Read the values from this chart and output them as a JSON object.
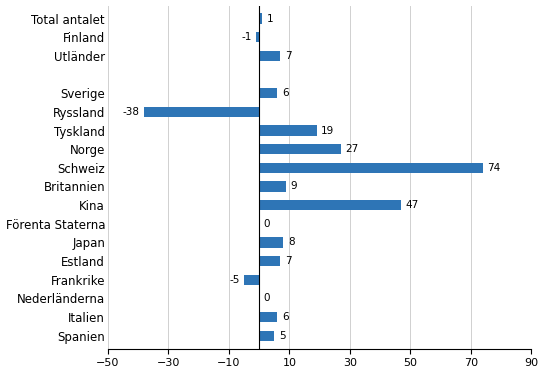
{
  "categories": [
    "Spanien",
    "Italien",
    "Nederländerna",
    "Frankrike",
    "Estland",
    "Japan",
    "Förenta Staterna",
    "Kina",
    "Britannien",
    "Schweiz",
    "Norge",
    "Tyskland",
    "Ryssland",
    "Sverige",
    "",
    "Utländer",
    "Finland",
    "Total antalet"
  ],
  "values": [
    5,
    6,
    0,
    -5,
    7,
    8,
    0,
    47,
    9,
    74,
    27,
    19,
    -38,
    6,
    null,
    7,
    -1,
    1
  ],
  "bar_color": "#2e75b6",
  "xlim": [
    -50,
    90
  ],
  "xticks": [
    -50,
    -30,
    -10,
    10,
    30,
    50,
    70,
    90
  ],
  "value_label_fontsize": 7.5,
  "category_fontsize": 8.5,
  "tick_fontsize": 8
}
